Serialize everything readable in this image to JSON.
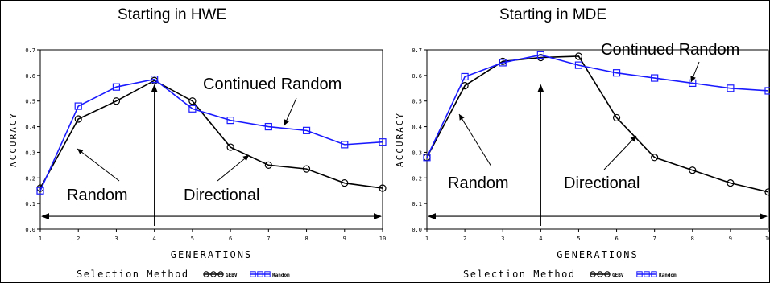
{
  "chart_data": [
    {
      "type": "line",
      "title": "Starting in HWE",
      "xlabel": "GENERATIONS",
      "ylabel": "ACCURACY",
      "xlim": [
        1,
        10
      ],
      "ylim": [
        0.0,
        0.7
      ],
      "x": [
        1,
        2,
        3,
        4,
        5,
        6,
        7,
        8,
        9,
        10
      ],
      "xticks": [
        "1",
        "2",
        "3",
        "4",
        "5",
        "6",
        "7",
        "8",
        "9",
        "10"
      ],
      "yticks": [
        "0.0",
        "0.1",
        "0.2",
        "0.3",
        "0.4",
        "0.5",
        "0.6",
        "0.7"
      ],
      "series": [
        {
          "name": "GEBV",
          "marker": "circle",
          "color": "#000000",
          "values": [
            0.16,
            0.43,
            0.5,
            0.58,
            0.5,
            0.32,
            0.25,
            0.235,
            0.18,
            0.16
          ]
        },
        {
          "name": "Random",
          "marker": "square",
          "color": "#1a1aff",
          "values": [
            0.15,
            0.48,
            0.555,
            0.585,
            0.47,
            0.425,
            0.4,
            0.385,
            0.33,
            0.34
          ]
        }
      ],
      "annotations": {
        "continued": "Continued Random",
        "random": "Random",
        "directional": "Directional"
      },
      "legend": {
        "title": "Selection Method",
        "position": "bottom"
      }
    },
    {
      "type": "line",
      "title": "Starting in MDE",
      "xlabel": "GENERATIONS",
      "ylabel": "ACCURACY",
      "xlim": [
        1,
        10
      ],
      "ylim": [
        0.0,
        0.7
      ],
      "x": [
        1,
        2,
        3,
        4,
        5,
        6,
        7,
        8,
        9,
        10
      ],
      "xticks": [
        "1",
        "2",
        "3",
        "4",
        "5",
        "6",
        "7",
        "8",
        "9",
        "10"
      ],
      "yticks": [
        "0.0",
        "0.1",
        "0.2",
        "0.3",
        "0.4",
        "0.5",
        "0.6",
        "0.7"
      ],
      "series": [
        {
          "name": "GEBV",
          "marker": "circle",
          "color": "#000000",
          "values": [
            0.28,
            0.56,
            0.655,
            0.67,
            0.675,
            0.435,
            0.28,
            0.23,
            0.18,
            0.145
          ]
        },
        {
          "name": "Random",
          "marker": "square",
          "color": "#1a1aff",
          "values": [
            0.28,
            0.595,
            0.65,
            0.68,
            0.64,
            0.61,
            0.59,
            0.57,
            0.55,
            0.54
          ]
        }
      ],
      "annotations": {
        "continued": "Continued Random",
        "random": "Random",
        "directional": "Directional"
      },
      "legend": {
        "title": "Selection Method",
        "position": "bottom"
      }
    }
  ]
}
